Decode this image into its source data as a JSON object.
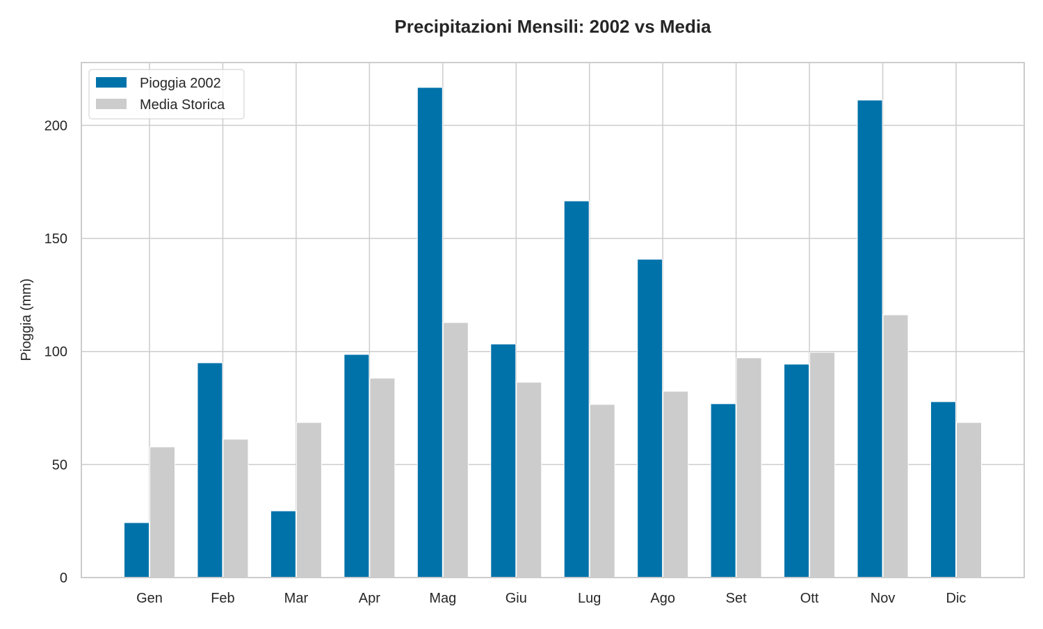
{
  "chart_data": {
    "type": "bar",
    "title": "Precipitazioni Mensili: 2002 vs Media",
    "xlabel": "",
    "ylabel": "Pioggia (mm)",
    "categories": [
      "Gen",
      "Feb",
      "Mar",
      "Apr",
      "Mag",
      "Giu",
      "Lug",
      "Ago",
      "Set",
      "Ott",
      "Nov",
      "Dic"
    ],
    "series": [
      {
        "name": "Pioggia 2002",
        "color": "#0072aa",
        "values": [
          24.3,
          95.0,
          29.5,
          98.7,
          216.8,
          103.3,
          166.6,
          140.8,
          76.9,
          94.4,
          211.2,
          77.8
        ]
      },
      {
        "name": "Media Storica",
        "color": "#cccccc",
        "values": [
          57.8,
          61.2,
          68.6,
          88.2,
          112.8,
          86.4,
          76.6,
          82.4,
          97.2,
          99.6,
          116.2,
          68.6
        ]
      }
    ],
    "ylim": [
      0,
      227.8
    ],
    "yticks": [
      0,
      50,
      100,
      150,
      200
    ],
    "grid": true,
    "legend": "top-left"
  }
}
